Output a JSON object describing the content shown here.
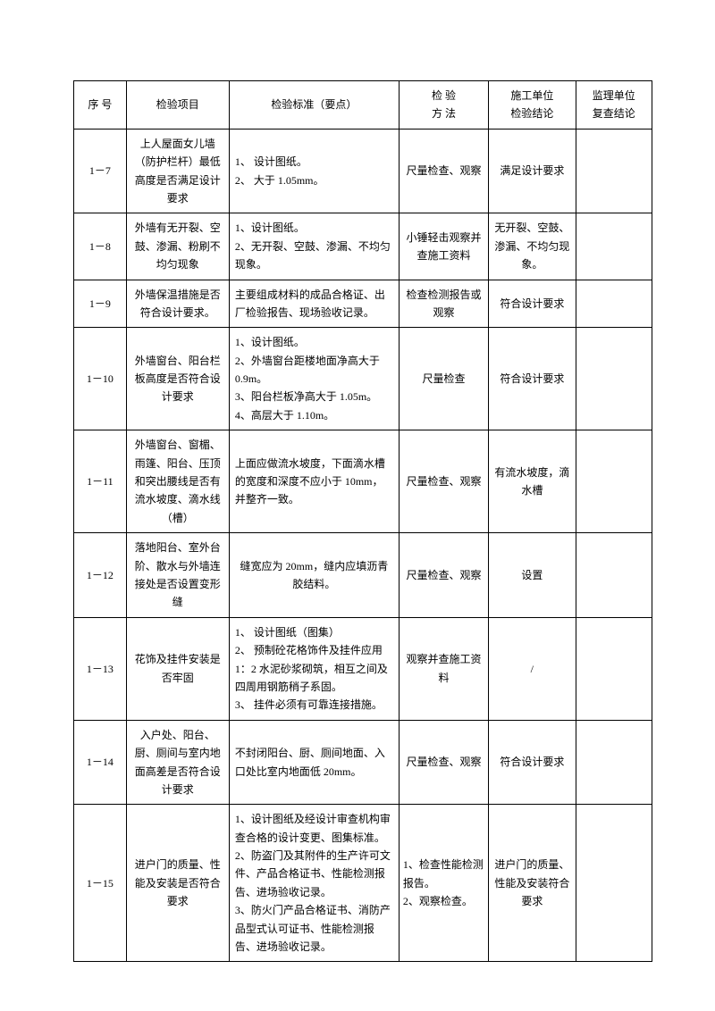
{
  "columns": [
    "序 号",
    "检验项目",
    "检验标准（要点）",
    "检 验\n方 法",
    "施工单位\n检验结论",
    "监理单位\n复查结论"
  ],
  "rows": [
    {
      "seq": "1－7",
      "item": "上人屋面女儿墙（防护栏杆）最低高度是否满足设计要求",
      "std": "1、 设计图纸。\n2、 大于 1.05mm。",
      "meth": "尺量检查、观察",
      "res": "满足设计要求",
      "rev": ""
    },
    {
      "seq": "1－8",
      "item": "外墙有无开裂、空鼓、渗漏、粉刷不均匀现象",
      "std": "1、设计图纸。\n2、无开裂、空鼓、渗漏、不均匀现象。",
      "meth": "小锤轻击观察并查施工资料",
      "res": "无开裂、空鼓、渗漏、不均匀现象。",
      "rev": ""
    },
    {
      "seq": "1－9",
      "item": "外墙保温措施是否符合设计要求。",
      "std": "主要组成材料的成品合格证、出厂检验报告、现场验收记录。",
      "meth": "检查检测报告或观察",
      "res": "符合设计要求",
      "rev": ""
    },
    {
      "seq": "1－10",
      "item": "外墙窗台、阳台栏板高度是否符合设计要求",
      "std": "1、设计图纸。\n2、外墙窗台距楼地面净高大于0.9m。\n3、阳台栏板净高大于 1.05m。\n4、高层大于 1.10m。",
      "meth": "尺量检查",
      "res": "符合设计要求",
      "rev": ""
    },
    {
      "seq": "1－11",
      "item": "外墙窗台、窗楣、雨篷、阳台、压顶和突出腰线是否有流水坡度、滴水线（槽）",
      "std": "上面应做流水坡度，下面滴水槽的宽度和深度不应小于 10mm，并整齐一致。",
      "meth": "尺量检查、观察",
      "res": "有流水坡度，滴水槽",
      "rev": ""
    },
    {
      "seq": "1－12",
      "item": "落地阳台、室外台阶、散水与外墙连接处是否设置变形缝",
      "std": "缝宽应为 20mm，缝内应填沥青胶结料。",
      "meth": "尺量检查、观察",
      "res": "设置",
      "rev": ""
    },
    {
      "seq": "1－13",
      "item": "花饰及挂件安装是否牢固",
      "std": "1、 设计图纸（图集）\n2、 预制砼花格饰件及挂件应用1：2 水泥砂浆砌筑，相互之间及四周用钢筋稍子系固。\n3、 挂件必须有可靠连接措施。",
      "meth": "观察并查施工资料",
      "res": "/",
      "rev": ""
    },
    {
      "seq": "1－14",
      "item": "入户处、阳台、厨、厕间与室内地面高差是否符合设计要求",
      "std": "不封闭阳台、厨、厕间地面、入口处比室内地面低 20mm。",
      "meth": "尺量检查、观察",
      "res": "符合设计要求",
      "rev": ""
    },
    {
      "seq": "1－15",
      "item": "进户门的质量、性能及安装是否符合要求",
      "std": "1、设计图纸及经设计审查机构审查合格的设计变更、图集标准。\n2、防盗门及其附件的生产许可文件、产品合格证书、性能检测报告、进场验收记录。\n3、防火门产品合格证书、消防产品型式认可证书、性能检测报告、进场验收记录。",
      "meth": "1、检查性能检测报告。\n2、观察检查。",
      "res": "进户门的质量、性能及安装符合要求",
      "rev": ""
    }
  ]
}
